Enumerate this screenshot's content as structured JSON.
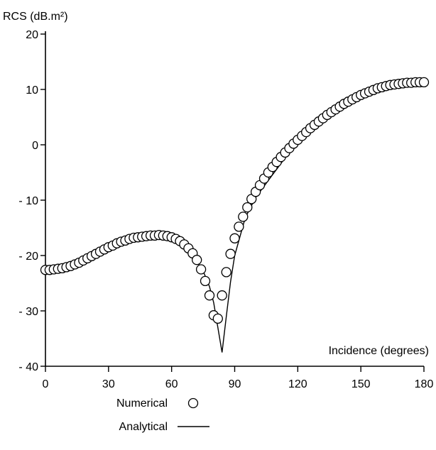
{
  "chart_data": {
    "type": "scatter",
    "title": "",
    "ylabel": "RCS (dB.m²)",
    "xlabel": "Incidence (degrees)",
    "xlim": [
      0,
      180
    ],
    "ylim": [
      -40,
      20
    ],
    "x_ticks": [
      0,
      30,
      60,
      90,
      120,
      150,
      180
    ],
    "y_ticks": [
      20,
      10,
      0,
      -10,
      -20,
      -30,
      -40
    ],
    "x_tick_labels": [
      "0",
      "30",
      "60",
      "90",
      "120",
      "150",
      "180"
    ],
    "y_tick_labels": [
      "20",
      "10",
      "0",
      "- 10",
      "- 20",
      "- 30",
      "- 40"
    ],
    "grid": false,
    "legend": {
      "placement": "bottom-center",
      "entries": [
        {
          "label": "Numerical",
          "marker": "circle"
        },
        {
          "label": "Analytical",
          "marker": "line"
        }
      ]
    },
    "series": [
      {
        "name": "Numerical",
        "marker": "circle",
        "x": [
          0,
          2,
          4,
          6,
          8,
          10,
          12,
          14,
          16,
          18,
          20,
          22,
          24,
          26,
          28,
          30,
          32,
          34,
          36,
          38,
          40,
          42,
          44,
          46,
          48,
          50,
          52,
          54,
          56,
          58,
          60,
          62,
          64,
          66,
          68,
          70,
          72,
          74,
          76,
          78,
          80,
          82,
          84,
          86,
          88,
          90,
          92,
          94,
          96,
          98,
          100,
          102,
          104,
          106,
          108,
          110,
          112,
          114,
          116,
          118,
          120,
          122,
          124,
          126,
          128,
          130,
          132,
          134,
          136,
          138,
          140,
          142,
          144,
          146,
          148,
          150,
          152,
          154,
          156,
          158,
          160,
          162,
          164,
          166,
          168,
          170,
          172,
          174,
          176,
          178,
          180
        ],
        "y": [
          -22.6,
          -22.6,
          -22.5,
          -22.4,
          -22.3,
          -22.1,
          -21.9,
          -21.6,
          -21.3,
          -20.9,
          -20.5,
          -20.1,
          -19.7,
          -19.3,
          -18.9,
          -18.5,
          -18.2,
          -17.8,
          -17.5,
          -17.3,
          -17.0,
          -16.8,
          -16.7,
          -16.6,
          -16.5,
          -16.4,
          -16.4,
          -16.3,
          -16.4,
          -16.5,
          -16.7,
          -17.0,
          -17.4,
          -18.0,
          -18.7,
          -19.6,
          -20.8,
          -22.5,
          -24.6,
          -27.2,
          -30.8,
          -31.4,
          -27.2,
          -23.0,
          -19.7,
          -16.9,
          -14.8,
          -13.0,
          -11.3,
          -9.8,
          -8.5,
          -7.3,
          -6.1,
          -5.0,
          -4.0,
          -3.1,
          -2.2,
          -1.4,
          -0.6,
          0.2,
          0.9,
          1.6,
          2.3,
          3.0,
          3.6,
          4.2,
          4.8,
          5.4,
          5.9,
          6.4,
          6.9,
          7.4,
          7.8,
          8.2,
          8.6,
          9.0,
          9.3,
          9.6,
          9.9,
          10.2,
          10.4,
          10.6,
          10.8,
          10.9,
          11.0,
          11.1,
          11.2,
          11.2,
          11.3,
          11.3,
          11.3
        ]
      },
      {
        "name": "Analytical",
        "marker": "line",
        "x": [
          0,
          10,
          20,
          30,
          40,
          50,
          55,
          60,
          65,
          70,
          75,
          78,
          80,
          82,
          84,
          86,
          88,
          90,
          95,
          100,
          110,
          120,
          130,
          140,
          150,
          160,
          170,
          180
        ],
        "y": [
          -23.0,
          -22.3,
          -20.8,
          -19.0,
          -17.5,
          -16.9,
          -16.8,
          -17.2,
          -18.2,
          -19.8,
          -22.8,
          -25.6,
          -28.5,
          -33.0,
          -37.5,
          -31.0,
          -24.8,
          -20.0,
          -13.2,
          -9.5,
          -4.4,
          0.7,
          4.6,
          7.4,
          9.4,
          10.7,
          11.3,
          11.4
        ]
      }
    ]
  }
}
